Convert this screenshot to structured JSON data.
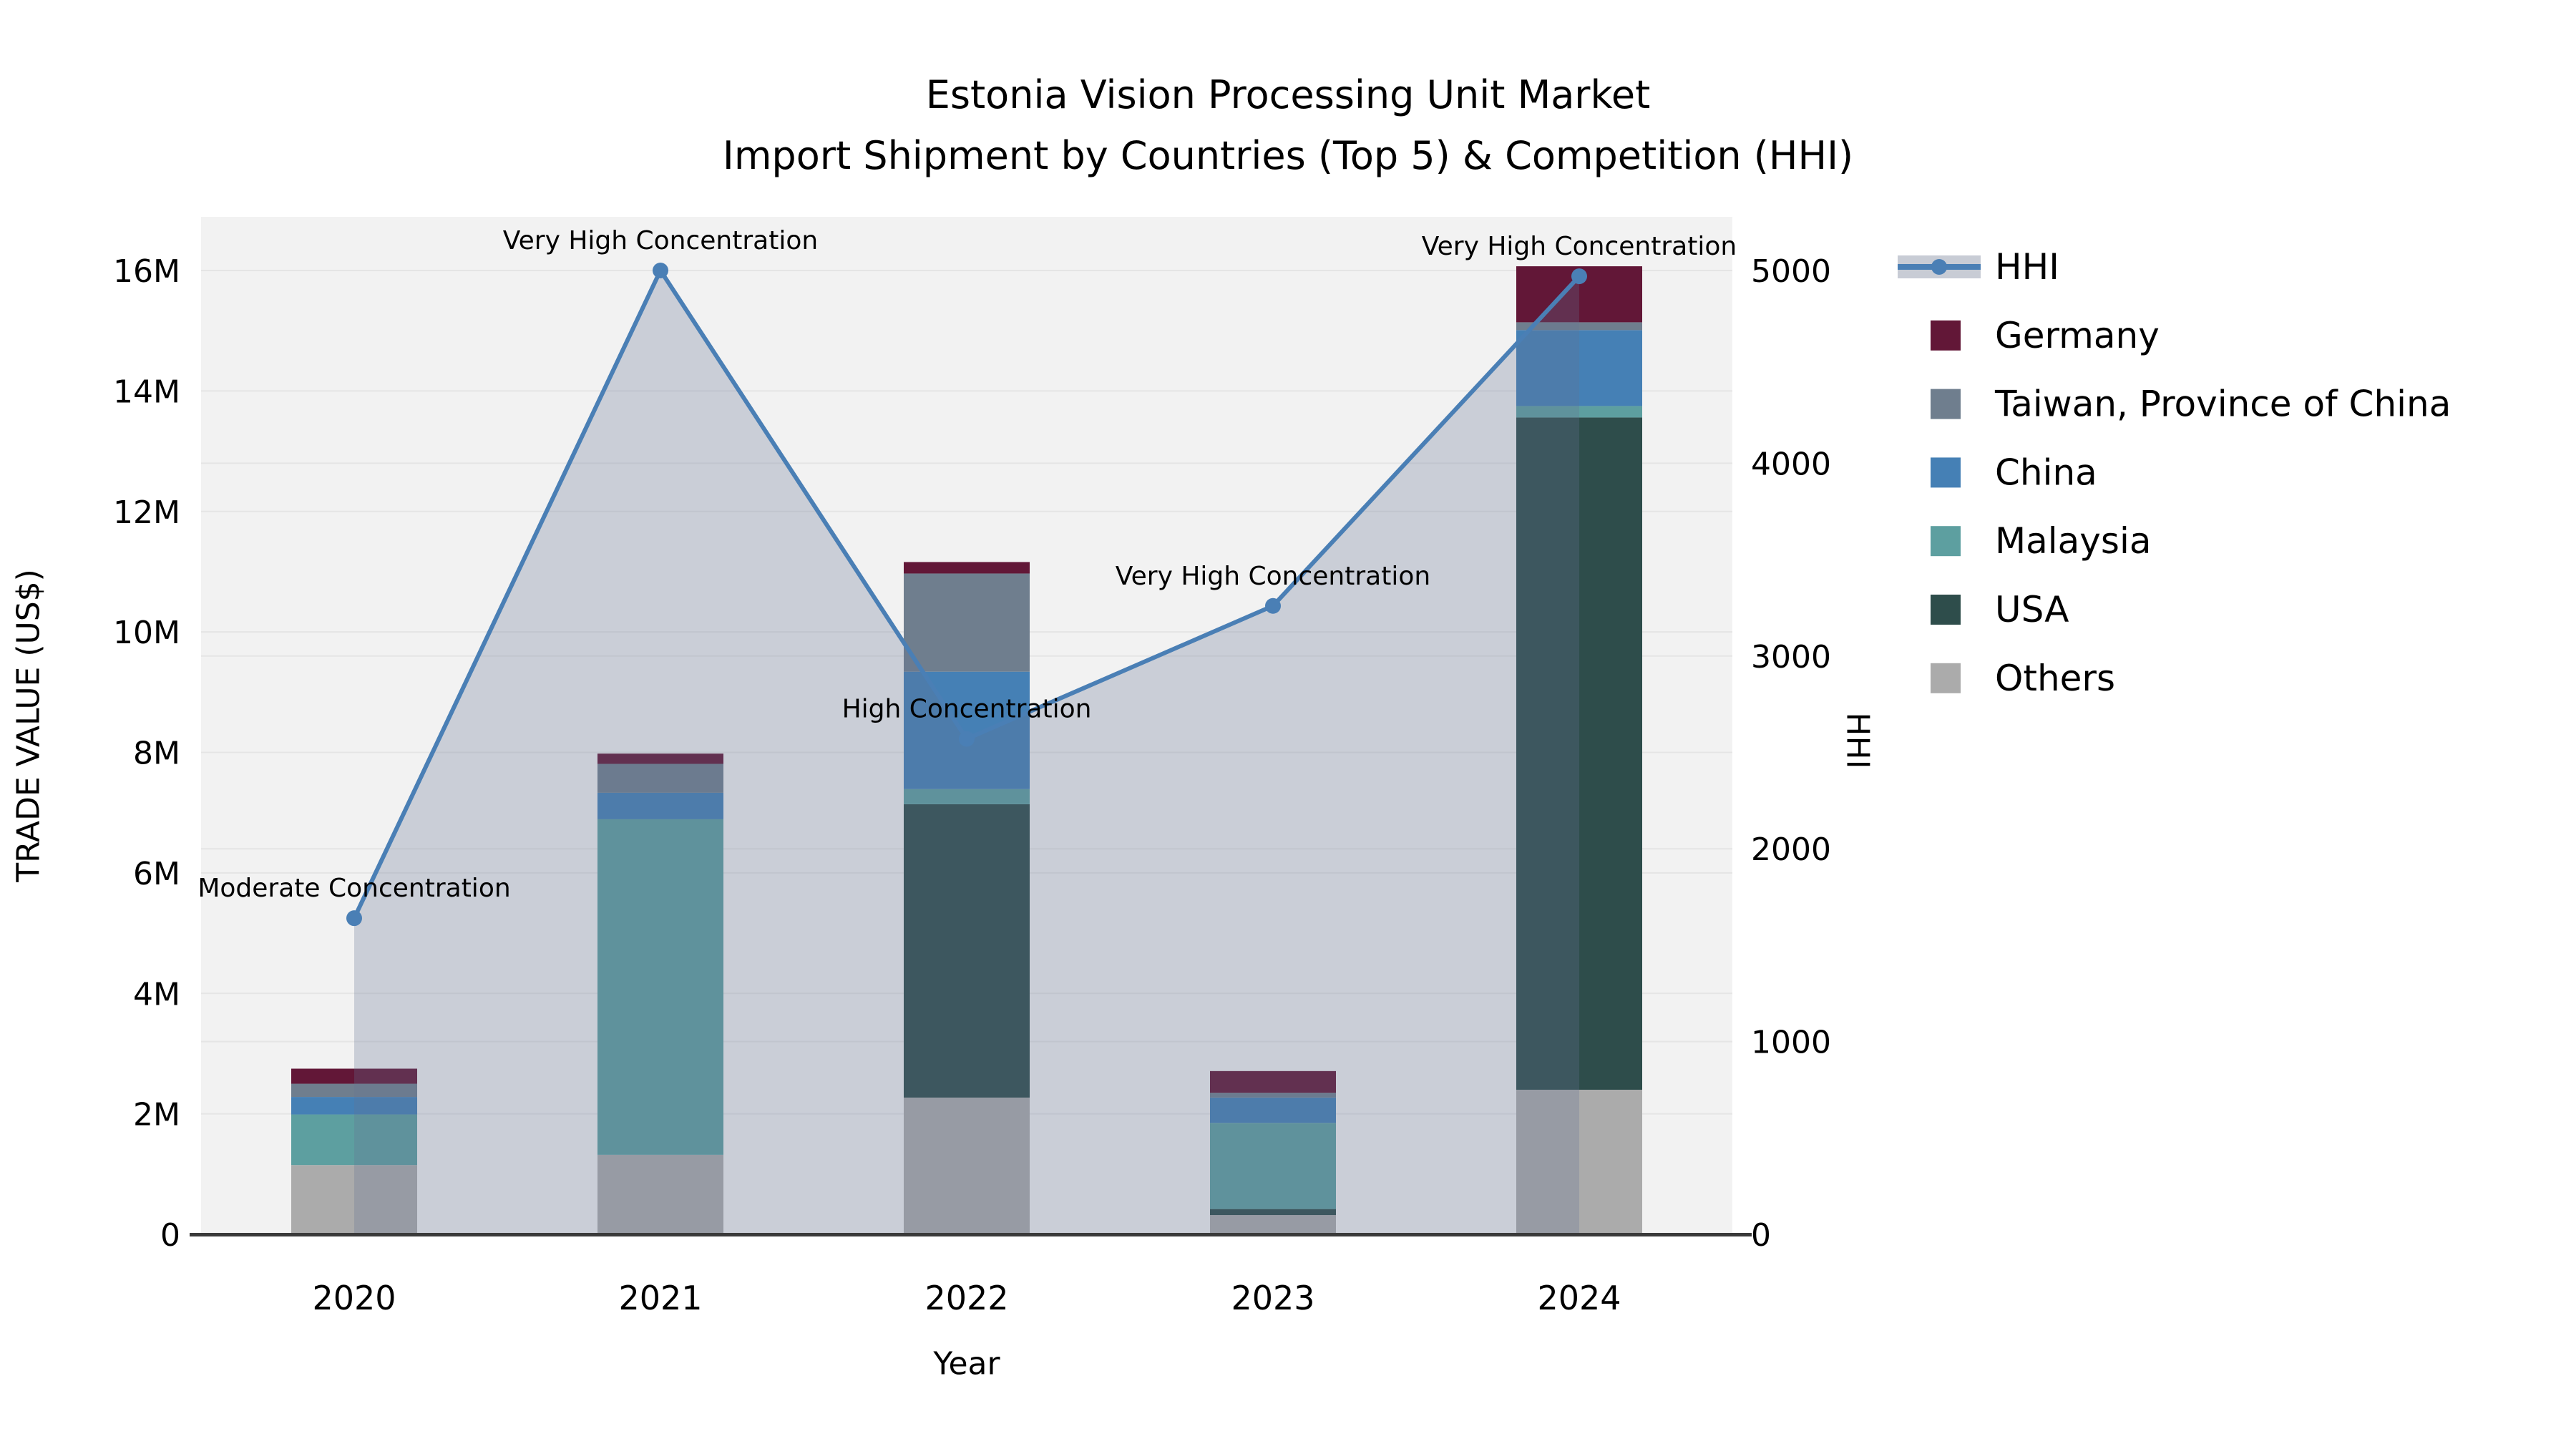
{
  "chart_data": {
    "type": "bar",
    "subtype": "stacked-bar-with-line-overlay",
    "title": "Estonia Vision Processing Unit Market",
    "subtitle": "Import Shipment by Countries (Top 5) & Competition (HHI)",
    "xlabel": "Year",
    "ylabel": "TRADE VALUE (US$)",
    "y2label": "HHI",
    "categories": [
      "2020",
      "2021",
      "2022",
      "2023",
      "2024"
    ],
    "values_unit": "millions US$",
    "series": [
      {
        "name": "Others",
        "color": "#ababab",
        "values": [
          1.15,
          1.32,
          2.27,
          0.32,
          2.4
        ]
      },
      {
        "name": "USA",
        "color": "#2e4d4b",
        "values": [
          0,
          0,
          4.87,
          0.1,
          11.16
        ]
      },
      {
        "name": "Malaysia",
        "color": "#5d9fa0",
        "values": [
          0.84,
          5.57,
          0.25,
          1.43,
          0.19
        ]
      },
      {
        "name": "China",
        "color": "#4580b5",
        "values": [
          0.29,
          0.44,
          1.95,
          0.42,
          1.26
        ]
      },
      {
        "name": "Taiwan, Province of China",
        "color": "#6f7e8e",
        "values": [
          0.22,
          0.48,
          1.63,
          0.08,
          0.13
        ]
      },
      {
        "name": "Germany",
        "color": "#621737",
        "values": [
          0.25,
          0.17,
          0.19,
          0.36,
          0.93
        ]
      }
    ],
    "hhi_line": {
      "name": "HHI",
      "color": "#4a7fb5",
      "area_fill": "rgba(100,115,148,0.28)",
      "values": [
        1640,
        5000,
        2570,
        3260,
        4970
      ]
    },
    "annotations": [
      {
        "category": "2020",
        "label": "Moderate Concentration"
      },
      {
        "category": "2021",
        "label": "Very High Concentration"
      },
      {
        "category": "2022",
        "label": "High Concentration"
      },
      {
        "category": "2023",
        "label": "Very High Concentration"
      },
      {
        "category": "2024",
        "label": "Very High Concentration"
      }
    ],
    "y_ticks": {
      "values": [
        0,
        2,
        4,
        6,
        8,
        10,
        12,
        14,
        16
      ],
      "labels": [
        "0",
        "2M",
        "4M",
        "6M",
        "8M",
        "10M",
        "12M",
        "14M",
        "16M"
      ]
    },
    "y2_ticks": {
      "values": [
        0,
        1000,
        2000,
        3000,
        4000,
        5000
      ],
      "labels": [
        "0",
        "1000",
        "2000",
        "3000",
        "4000",
        "5000"
      ]
    },
    "ylim": [
      0,
      16.9
    ],
    "y2lim": [
      0,
      5280
    ],
    "grid": true,
    "legend": {
      "position": "outside-top-right",
      "items": [
        {
          "label": "HHI",
          "type": "line",
          "color": "#4a7fb5"
        },
        {
          "label": "Germany",
          "type": "patch",
          "color": "#621737"
        },
        {
          "label": "Taiwan, Province of China",
          "type": "patch",
          "color": "#6f7e8e"
        },
        {
          "label": "China",
          "type": "patch",
          "color": "#4580b5"
        },
        {
          "label": "Malaysia",
          "type": "patch",
          "color": "#5d9fa0"
        },
        {
          "label": "USA",
          "type": "patch",
          "color": "#2e4d4b"
        },
        {
          "label": "Others",
          "type": "patch",
          "color": "#ababab"
        }
      ]
    },
    "colors": {
      "figure_background": "#ffffff",
      "plot_background": "#f2f2f2",
      "grid_color": "#e5e5e5",
      "axis_line_color": "#3a3a3a",
      "text_color": "#000000",
      "legend_hhi_band": "#c8ccd5"
    }
  }
}
